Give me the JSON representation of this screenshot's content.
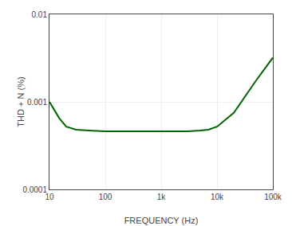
{
  "chart_data": {
    "type": "line",
    "xlabel": "FREQUENCY (Hz)",
    "ylabel": "THD + N (%)",
    "x": [
      10,
      15,
      20,
      30,
      50,
      100,
      200,
      500,
      1000,
      2000,
      3000,
      5000,
      7000,
      10000,
      20000,
      50000,
      100000
    ],
    "values": [
      0.001,
      0.00065,
      0.00052,
      0.00048,
      0.00047,
      0.00046,
      0.00046,
      0.00046,
      0.00046,
      0.00046,
      0.00046,
      0.00047,
      0.00048,
      0.00052,
      0.00075,
      0.00175,
      0.0032
    ],
    "color": "#006400",
    "xlim": [
      10,
      100000
    ],
    "ylim": [
      0.0001,
      0.01
    ],
    "xticks": [
      10,
      100,
      {
        "value": 1000,
        "label": "1k"
      },
      {
        "value": 10000,
        "label": "10k"
      },
      {
        "value": 100000,
        "label": "100k"
      }
    ],
    "yticks": [
      0.0001,
      0.001,
      0.01
    ],
    "log": true,
    "grid": true
  }
}
